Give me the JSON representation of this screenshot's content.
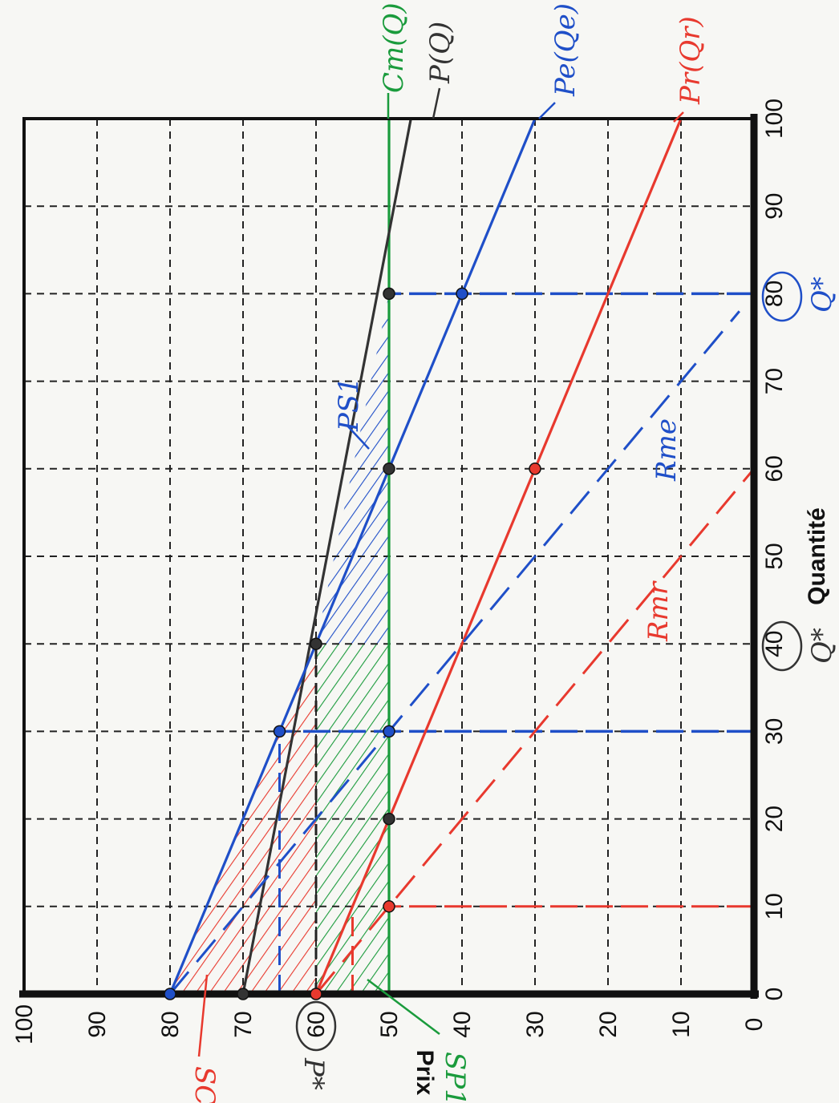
{
  "chart_data": {
    "type": "line",
    "xlabel": "Quantité",
    "ylabel": "Prix",
    "xlim": [
      0,
      100
    ],
    "ylim": [
      0,
      100
    ],
    "x_ticks": [
      0,
      10,
      20,
      30,
      40,
      50,
      60,
      70,
      80,
      90,
      100
    ],
    "y_ticks": [
      0,
      10,
      20,
      30,
      40,
      50,
      60,
      70,
      80,
      90,
      100
    ],
    "grid": true,
    "series": [
      {
        "name": "Cm(Q)",
        "color": "#1a9b3c",
        "style": "solid",
        "x": [
          0,
          100
        ],
        "y": [
          50,
          50
        ]
      },
      {
        "name": "P(Q)",
        "color": "#333333",
        "style": "solid",
        "x": [
          0,
          100
        ],
        "y": [
          70,
          47
        ]
      },
      {
        "name": "Pe(Qe)",
        "color": "#1f4fc8",
        "style": "solid",
        "x": [
          0,
          100
        ],
        "y": [
          80,
          30
        ]
      },
      {
        "name": "Pr(Qr)",
        "color": "#e8392e",
        "style": "solid",
        "x": [
          0,
          100
        ],
        "y": [
          60,
          10
        ]
      },
      {
        "name": "Rme",
        "color": "#1f4fc8",
        "style": "dashed",
        "x": [
          0,
          78
        ],
        "y": [
          80,
          2
        ]
      },
      {
        "name": "Rmr",
        "color": "#e8392e",
        "style": "dashed",
        "x": [
          0,
          60
        ],
        "y": [
          60,
          0
        ]
      }
    ],
    "points": [
      {
        "x": 0,
        "y": 80,
        "color": "#1f4fc8"
      },
      {
        "x": 0,
        "y": 70,
        "color": "#333333"
      },
      {
        "x": 0,
        "y": 60,
        "color": "#e8392e"
      },
      {
        "x": 10,
        "y": 50,
        "color": "#e8392e"
      },
      {
        "x": 20,
        "y": 50,
        "color": "#333333"
      },
      {
        "x": 30,
        "y": 65,
        "color": "#1f4fc8"
      },
      {
        "x": 30,
        "y": 50,
        "color": "#1f4fc8"
      },
      {
        "x": 40,
        "y": 60,
        "color": "#333333"
      },
      {
        "x": 60,
        "y": 50,
        "color": "#333333"
      },
      {
        "x": 60,
        "y": 30,
        "color": "#e8392e"
      },
      {
        "x": 80,
        "y": 50,
        "color": "#333333"
      },
      {
        "x": 80,
        "y": 40,
        "color": "#1f4fc8"
      }
    ],
    "annotations": {
      "cm_label": "Cm(Q)",
      "p_label": "P(Q)",
      "pe_label": "Pe(Qe)",
      "pr_label": "Pr(Qr)",
      "rme_label": "Rme",
      "rmr_label": "Rmr",
      "ps_label": "PS1",
      "sp_label": "SP1",
      "sc_label": "SC",
      "p_star_label": "P*",
      "q_star_label": "Q*",
      "q_star_value": "80",
      "q_label": "Q*",
      "q_value": "40",
      "p_value": "60"
    }
  }
}
